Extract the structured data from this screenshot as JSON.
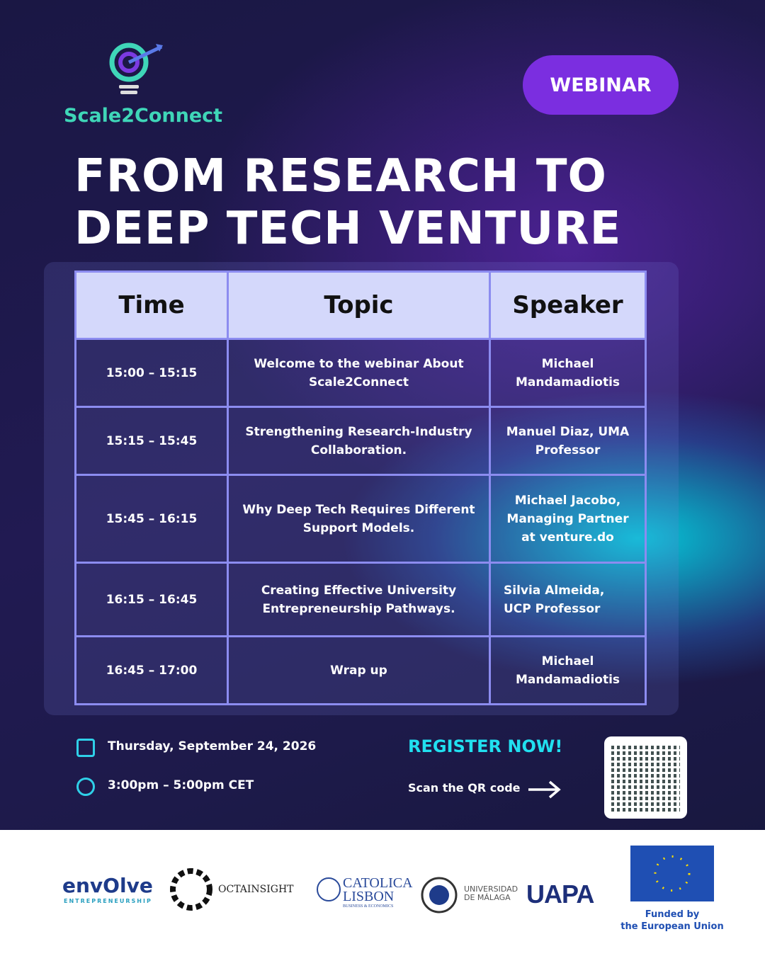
{
  "header": {
    "logo_text": "Scale2Connect",
    "badge": "WEBINAR",
    "title_lines": [
      "FROM RESEARCH TO",
      "DEEP TECH VENTURE"
    ]
  },
  "table": {
    "columns": [
      "Time",
      "Topic",
      "Speaker"
    ],
    "rows": [
      [
        "15:00 – 15:15",
        "Welcome to the webinar About Scale2Connect",
        "Michael Mandamadiotis"
      ],
      [
        "15:15 – 15:45",
        "Strengthening Research-Industry Collaboration.",
        "Manuel Diaz, UMA Professor"
      ],
      [
        "15:45 – 16:15",
        "Why Deep Tech Requires Different Support Models.",
        "Michael Jacobo, Managing Partner at venture.do"
      ],
      [
        "16:15 – 16:45",
        "Creating Effective University Entrepreneurship Pathways.",
        "Silvia Almeida, UCP Professor"
      ],
      [
        "16:45 – 17:00",
        "Wrap up",
        "Michael Mandamadiotis"
      ]
    ]
  },
  "event": {
    "date": "Thursday, September 24, 2026",
    "time": "3:00pm – 5:00pm CET",
    "register": "REGISTER NOW!",
    "scan": "Scan the QR code"
  },
  "partners": {
    "envolve": "envOlve",
    "envolve_sub": "ENTREPRENEURSHIP",
    "octainsight": "OCTAINSIGHT",
    "catolica": [
      "CATOLICA",
      "LISBON",
      "BUSINESS & ECONOMICS"
    ],
    "malaga": [
      "UNIVERSIDAD",
      "DE MÁLAGA"
    ],
    "uapa": "UAPA",
    "eu": [
      "Funded by",
      "the European Union"
    ]
  }
}
